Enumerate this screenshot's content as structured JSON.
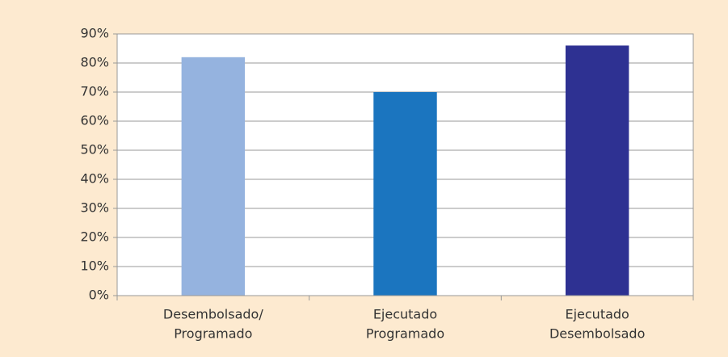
{
  "chart_data": {
    "type": "bar",
    "categories": [
      [
        "Desembolsado/",
        "Programado"
      ],
      [
        "Ejecutado",
        "Programado"
      ],
      [
        "Ejecutado",
        "Desembolsado"
      ]
    ],
    "values": [
      82,
      70,
      86
    ],
    "colors": [
      "#95b3df",
      "#1b75bf",
      "#2e3192"
    ],
    "ylim": [
      0,
      90
    ],
    "yticks": [
      {
        "value": 0,
        "label": "0%"
      },
      {
        "value": 10,
        "label": "10%"
      },
      {
        "value": 20,
        "label": "20%"
      },
      {
        "value": 30,
        "label": "30%"
      },
      {
        "value": 40,
        "label": "40%"
      },
      {
        "value": 50,
        "label": "50%"
      },
      {
        "value": 60,
        "label": "60%"
      },
      {
        "value": 70,
        "label": "70%"
      },
      {
        "value": 80,
        "label": "80%"
      },
      {
        "value": 90,
        "label": "90%"
      }
    ],
    "grid": true
  }
}
